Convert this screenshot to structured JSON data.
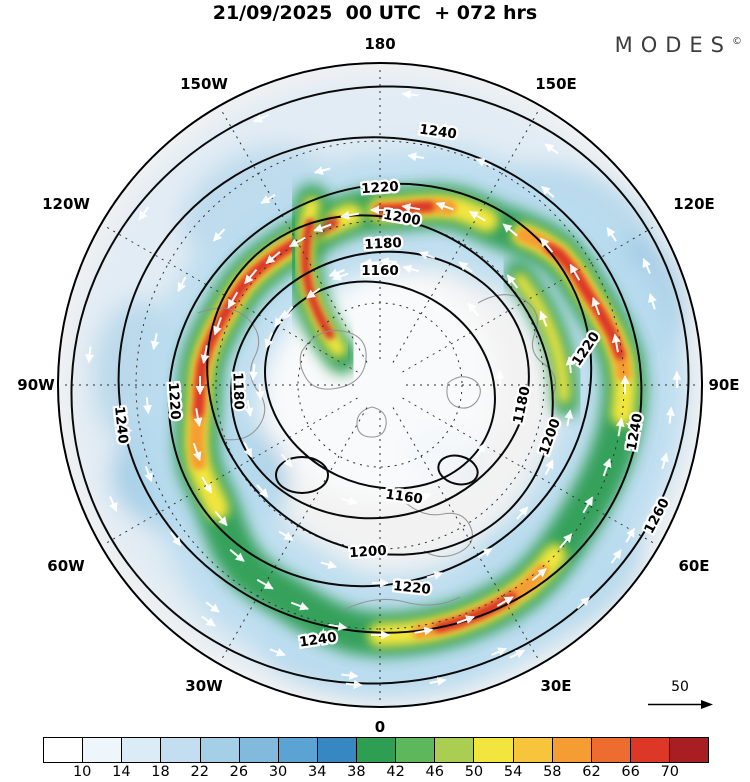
{
  "header": {
    "title": "21/09/2025  00 UTC  + 072 hrs",
    "brand": "MODES",
    "brand_mark": "©"
  },
  "map": {
    "longitude_labels": [
      "180",
      "150E",
      "120E",
      "90E",
      "60E",
      "30E",
      "0",
      "30W",
      "60W",
      "90W",
      "120W",
      "150W"
    ],
    "contour_levels": [
      "1160",
      "1180",
      "1200",
      "1220",
      "1240",
      "1260"
    ],
    "reference_arrow_label": "50"
  },
  "colorbar": {
    "ticks": [
      "10",
      "14",
      "18",
      "22",
      "26",
      "30",
      "34",
      "38",
      "42",
      "46",
      "50",
      "54",
      "58",
      "62",
      "66",
      "70"
    ],
    "colors": [
      "#ffffff",
      "#eef6fc",
      "#dcecf7",
      "#c3def1",
      "#a5cfe7",
      "#81badd",
      "#5ba3d3",
      "#3787c3",
      "#2e9e53",
      "#5cb85a",
      "#aace52",
      "#f2e63e",
      "#f7c53c",
      "#f59d33",
      "#ee6c2f",
      "#dc3727",
      "#a91e22"
    ]
  },
  "chart_data": {
    "type": "heatmap",
    "title": "21/09/2025 00 UTC + 072 hrs",
    "projection": "north polar stereographic",
    "longitude_labels": [
      "180",
      "150E",
      "120E",
      "90E",
      "60E",
      "30E",
      "0",
      "30W",
      "60W",
      "90W",
      "120W",
      "150W"
    ],
    "contour_levels": [
      1160,
      1180,
      1200,
      1220,
      1240,
      1260
    ],
    "contour_interval": 20,
    "shading_ticks": [
      10,
      14,
      18,
      22,
      26,
      30,
      34,
      38,
      42,
      46,
      50,
      54,
      58,
      62,
      66,
      70
    ],
    "shading_colors": [
      "#ffffff",
      "#eef6fc",
      "#dcecf7",
      "#c3def1",
      "#a5cfe7",
      "#81badd",
      "#5ba3d3",
      "#3787c3",
      "#2e9e53",
      "#5cb85a",
      "#aace52",
      "#f2e63e",
      "#f7c53c",
      "#f59d33",
      "#ee6c2f",
      "#dc3727",
      "#a91e22"
    ],
    "vector_reference": 50,
    "overlays": [
      "shaded speed field",
      "black height contours",
      "white flow arrows",
      "dashed graticule",
      "gray coastlines"
    ]
  }
}
